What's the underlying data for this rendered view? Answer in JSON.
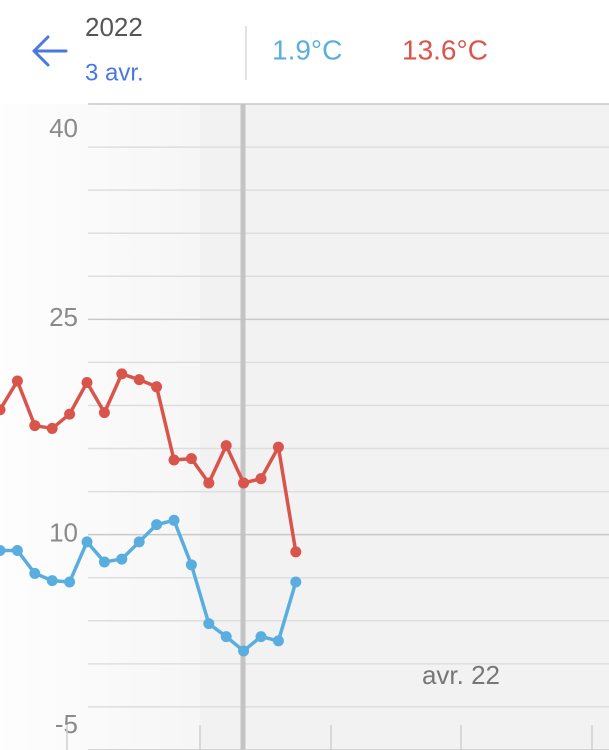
{
  "header": {
    "year": "2022",
    "date": "3 avr.",
    "min": "1.9°C",
    "max": "13.6°C"
  },
  "chart_data": {
    "type": "line",
    "categories": [
      null,
      null,
      null,
      null,
      null,
      null,
      null,
      null,
      null,
      null,
      null,
      null,
      null,
      null,
      null,
      null,
      null,
      null
    ],
    "series": [
      {
        "color": "#d9544b",
        "values": [
          18.7,
          20.7,
          17.6,
          17.4,
          18.4,
          20.6,
          18.5,
          21.2,
          20.8,
          20.3,
          15.2,
          15.3,
          13.6,
          16.2,
          13.6,
          13.9,
          16.1,
          8.8
        ]
      },
      {
        "color": "#5aaedf",
        "values": [
          8.9,
          8.9,
          7.3,
          6.8,
          6.7,
          9.5,
          8.1,
          8.3,
          9.5,
          10.7,
          11.0,
          7.9,
          3.8,
          2.9,
          1.9,
          2.9,
          2.6,
          6.7
        ]
      }
    ],
    "ylim": [
      -5,
      40
    ],
    "yticks": [
      -5,
      10,
      25,
      40
    ],
    "minor_yticks": [
      37,
      34,
      31,
      28,
      22,
      19,
      16,
      13,
      7,
      4,
      1,
      -2
    ],
    "x_label": "avr. 22",
    "grid": true
  }
}
